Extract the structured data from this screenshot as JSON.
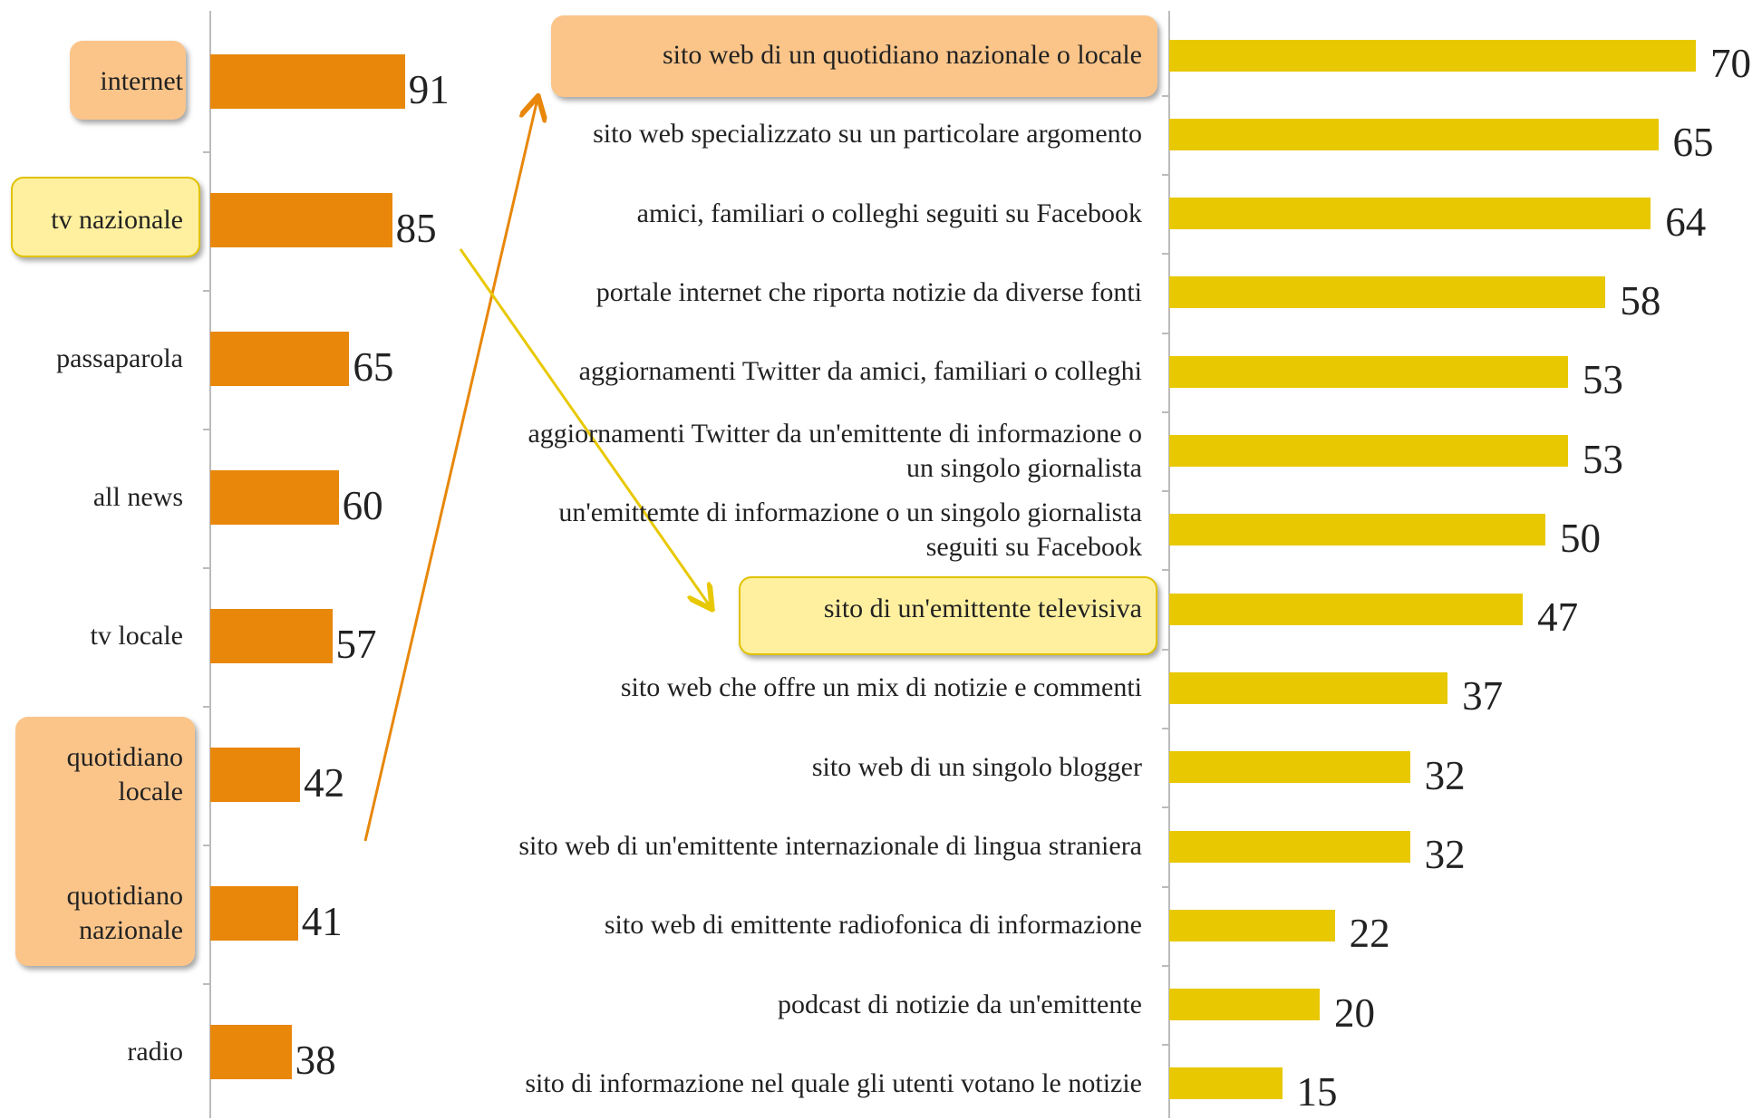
{
  "chart_data": [
    {
      "type": "bar",
      "orientation": "horizontal",
      "color": "#e8870a",
      "xlim": [
        0,
        100
      ],
      "categories": [
        "internet",
        "tv nazionale",
        "passaparola",
        "all news",
        "tv locale",
        "quotidiano locale",
        "quotidiano nazionale",
        "radio"
      ],
      "values": [
        91,
        85,
        65,
        60,
        57,
        42,
        41,
        38
      ]
    },
    {
      "type": "bar",
      "orientation": "horizontal",
      "color": "#e8c800",
      "xlim": [
        0,
        100
      ],
      "categories": [
        "sito web di un quotidiano nazionale o locale",
        "sito web specializzato su un particolare argomento",
        "amici, familiari o colleghi seguiti su Facebook",
        "portale internet che riporta notizie da diverse fonti",
        "aggiornamenti Twitter da amici, familiari o colleghi",
        "aggiornamenti Twitter da un'emittente di informazione o un singolo giornalista",
        "un'emittemte di informazione o un singolo giornalista seguiti su Facebook",
        "sito di un'emittente televisiva",
        "sito web che offre un mix di notizie e commenti",
        "sito web di un singolo blogger",
        "sito web di un'emittente internazionale di lingua straniera",
        "sito web di emittente radiofonica di informazione",
        "podcast di notizie da un'emittente",
        "sito di informazione nel quale gli utenti votano le notizie"
      ],
      "values": [
        70,
        65,
        64,
        58,
        53,
        53,
        50,
        47,
        37,
        32,
        32,
        22,
        20,
        15
      ]
    }
  ]
}
